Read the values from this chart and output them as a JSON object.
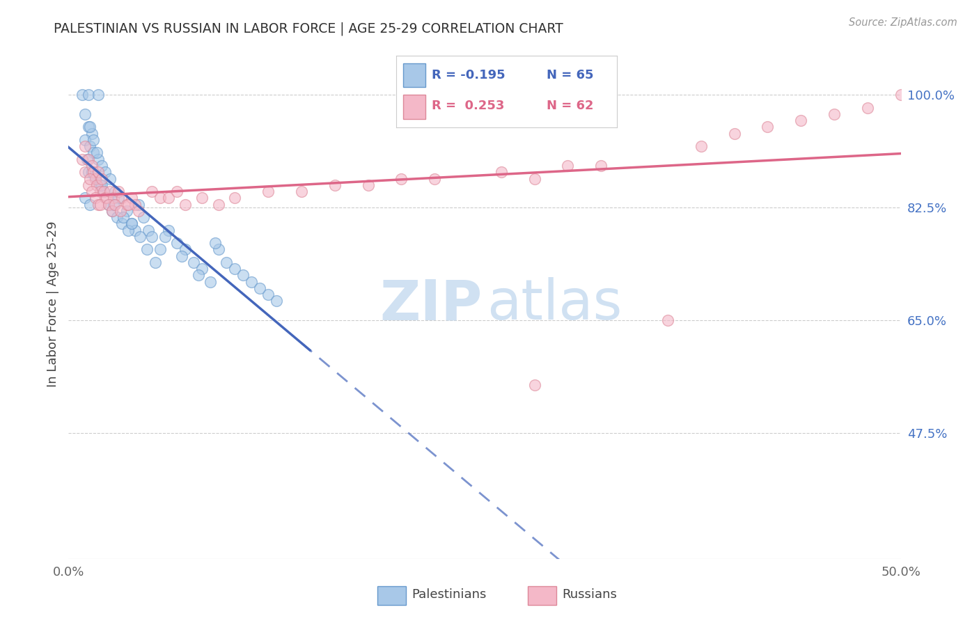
{
  "title": "PALESTINIAN VS RUSSIAN IN LABOR FORCE | AGE 25-29 CORRELATION CHART",
  "source": "Source: ZipAtlas.com",
  "ylabel": "In Labor Force | Age 25-29",
  "xlim": [
    0.0,
    0.5
  ],
  "ylim": [
    0.28,
    1.07
  ],
  "xtick_positions": [
    0.0,
    0.1,
    0.2,
    0.3,
    0.4,
    0.5
  ],
  "xtick_labels": [
    "0.0%",
    "",
    "",
    "",
    "",
    "50.0%"
  ],
  "ytick_positions": [
    0.475,
    0.65,
    0.825,
    1.0
  ],
  "ytick_labels": [
    "47.5%",
    "65.0%",
    "82.5%",
    "100.0%"
  ],
  "pal_color": "#A8C8E8",
  "pal_edge": "#6699CC",
  "rus_color": "#F4B8C8",
  "rus_edge": "#DD8899",
  "trend_pal_color": "#4466BB",
  "trend_rus_color": "#DD6688",
  "ytick_color": "#4472C4",
  "grid_color": "#CCCCCC",
  "bg_color": "#FFFFFF",
  "title_color": "#333333",
  "source_color": "#999999",
  "watermark_color": "#C8DCF0",
  "N_pal": 65,
  "N_rus": 62,
  "R_pal": -0.195,
  "R_rus": 0.253,
  "legend_label_pal": "R = -0.195  N = 65",
  "legend_label_rus": "R =  0.253  N = 62"
}
